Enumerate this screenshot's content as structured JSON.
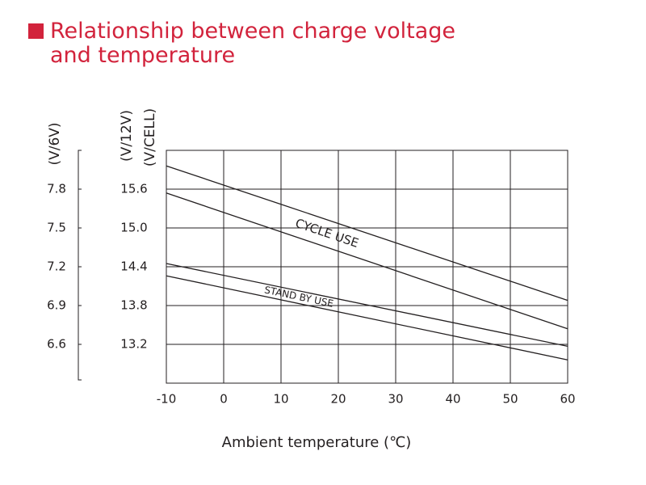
{
  "chart_data": {
    "type": "band",
    "title": "Relationship between charge voltage and temperature",
    "x_label": "Ambient temperature (℃)",
    "y_label": "(V/12V)",
    "y2_label": "(V/6V)",
    "y3_label": "(V/CELL)",
    "x": [
      -10,
      60
    ],
    "xlim": [
      -10,
      60
    ],
    "xticks": [
      -10,
      0,
      10,
      20,
      30,
      40,
      50,
      60
    ],
    "ylim": [
      12.6,
      16.2
    ],
    "yticks": [
      15.6,
      {
        "value": 15,
        "label": "15.0"
      },
      14.4,
      13.8,
      13.2
    ],
    "y2lim": [
      6.3,
      8.1
    ],
    "y2ticks": [
      7.8,
      7.5,
      7.2,
      6.9,
      6.6
    ],
    "grid": true,
    "series": [
      {
        "name": "CYCLE USE",
        "color": "#231f20",
        "upper": [
          15.96,
          13.88
        ],
        "lower": [
          15.54,
          13.44
        ]
      },
      {
        "name": "STAND BY USE",
        "color": "#231f20",
        "upper": [
          14.45,
          13.17
        ],
        "lower": [
          14.26,
          12.96
        ]
      }
    ]
  }
}
